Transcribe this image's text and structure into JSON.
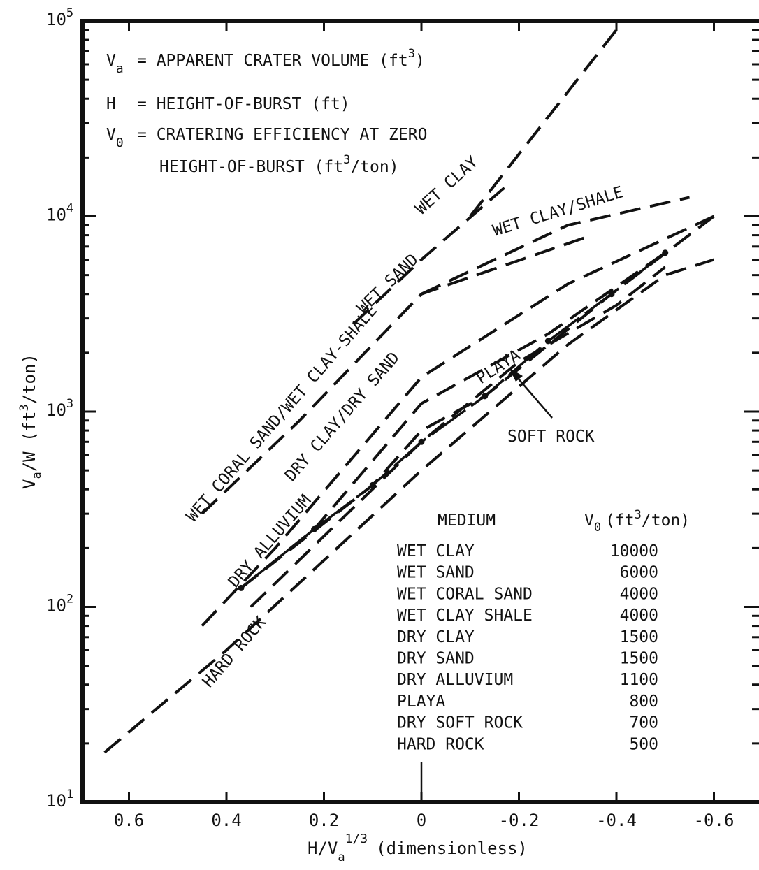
{
  "chart_data": {
    "type": "line",
    "title": "",
    "xlabel": "H/V",
    "xlabel_sub": "a",
    "xlabel_sup": "1/3",
    "xlabel_unit": "(dimensionless)",
    "ylabel": "V",
    "ylabel_sub": "a",
    "ylabel_mid": "/W (ft",
    "ylabel_sup": "3",
    "ylabel_end": "/ton)",
    "x_scale": "linear, reversed",
    "xlim": [
      0.7,
      -0.7
    ],
    "y_scale": "log",
    "ylim": [
      10,
      100000
    ],
    "x_ticks": [
      "0.6",
      "0.4",
      "0.2",
      "0",
      "-0.2",
      "-0.4",
      "-0.6"
    ],
    "y_ticks": [
      {
        "base": "10",
        "exp": "1"
      },
      {
        "base": "10",
        "exp": "2"
      },
      {
        "base": "10",
        "exp": "3"
      },
      {
        "base": "10",
        "exp": "4"
      },
      {
        "base": "10",
        "exp": "5"
      }
    ],
    "definitions": [
      {
        "sym": "V",
        "sub": "a",
        "text": "= APPARENT CRATER VOLUME (ft",
        "sup": "3",
        "end": ")"
      },
      {
        "sym": "H",
        "sub": "",
        "text": "= HEIGHT-OF-BURST (ft)",
        "sup": "",
        "end": ""
      },
      {
        "sym": "V",
        "sub": "0",
        "text": "= CRATERING EFFICIENCY AT ZERO",
        "sup": "",
        "end": ""
      },
      {
        "sym": "",
        "sub": "",
        "text": "HEIGHT-OF-BURST (ft",
        "sup": "3",
        "end": "/ton)"
      }
    ],
    "series": [
      {
        "name": "WET CLAY",
        "x": [
          -0.1,
          -0.4
        ],
        "y": [
          10000,
          90000
        ]
      },
      {
        "name": "WET SAND",
        "x": [
          0.14,
          0.0,
          -0.17
        ],
        "y": [
          2800,
          6000,
          14000
        ]
      },
      {
        "name": "WET CLAY/SHALE",
        "x": [
          0.0,
          -0.3,
          -0.55
        ],
        "y": [
          4000,
          9000,
          12500
        ]
      },
      {
        "name": "WET CORAL SAND/WET CLAY-SHALE",
        "x": [
          0.45,
          0.25,
          0.0,
          -0.35
        ],
        "y": [
          300,
          900,
          4000,
          8000
        ]
      },
      {
        "name": "DRY CLAY/DRY SAND",
        "x": [
          0.45,
          0.3,
          0.0,
          -0.3,
          -0.6
        ],
        "y": [
          80,
          200,
          1500,
          4500,
          10000
        ]
      },
      {
        "name": "DRY ALLUVIUM",
        "x": [
          0.37,
          0.22,
          0.0,
          -0.26,
          -0.5
        ],
        "y": [
          125,
          250,
          1100,
          2500,
          6500
        ]
      },
      {
        "name": "PLAYA",
        "x": [
          0.37,
          0.1,
          0.0,
          -0.13,
          -0.39,
          -0.6
        ],
        "y": [
          125,
          420,
          800,
          1200,
          4000,
          10000
        ]
      },
      {
        "name": "SOFT ROCK",
        "x": [
          0.35,
          0.0,
          -0.2,
          -0.4,
          -0.5
        ],
        "y": [
          100,
          700,
          1800,
          3500,
          5500
        ]
      },
      {
        "name": "HARD ROCK",
        "x": [
          0.65,
          0.4,
          0.0,
          -0.3,
          -0.5,
          -0.6
        ],
        "y": [
          18,
          60,
          500,
          2200,
          5000,
          6000
        ]
      }
    ],
    "markers": [
      {
        "x": 0.37,
        "y": 125
      },
      {
        "x": 0.22,
        "y": 250
      },
      {
        "x": 0.1,
        "y": 420
      },
      {
        "x": 0.0,
        "y": 700
      },
      {
        "x": -0.13,
        "y": 1200
      },
      {
        "x": -0.26,
        "y": 2300
      },
      {
        "x": -0.39,
        "y": 4000
      },
      {
        "x": -0.5,
        "y": 6500
      }
    ],
    "curve_labels": {
      "wet_clay": "WET CLAY",
      "wet_clay_shale": "WET CLAY/SHALE",
      "wet_sand": "WET SAND",
      "wet_coral": "WET CORAL SAND/WET CLAY-SHALE",
      "dry_clay": "DRY CLAY/DRY SAND",
      "dry_alluvium": "DRY ALLUVIUM",
      "playa": "PLAYA",
      "hard_rock": "HARD ROCK",
      "soft_rock": "SOFT ROCK"
    },
    "table": {
      "header_medium": "MEDIUM",
      "header_v0": "V",
      "header_v0_sub": "0",
      "header_v0_unit": "(ft",
      "header_v0_sup": "3",
      "header_v0_end": "/ton)",
      "rows": [
        {
          "medium": "WET CLAY",
          "v0": "10000"
        },
        {
          "medium": "WET SAND",
          "v0": "6000"
        },
        {
          "medium": "WET CORAL SAND",
          "v0": "4000"
        },
        {
          "medium": "WET CLAY SHALE",
          "v0": "4000"
        },
        {
          "medium": "DRY CLAY",
          "v0": "1500"
        },
        {
          "medium": "DRY SAND",
          "v0": "1500"
        },
        {
          "medium": "DRY ALLUVIUM",
          "v0": "1100"
        },
        {
          "medium": "PLAYA",
          "v0": "800"
        },
        {
          "medium": "DRY SOFT ROCK",
          "v0": "700"
        },
        {
          "medium": "HARD ROCK",
          "v0": "500"
        }
      ]
    },
    "grid": false,
    "colors": {
      "ink": "#111111",
      "background": "#ffffff"
    }
  }
}
